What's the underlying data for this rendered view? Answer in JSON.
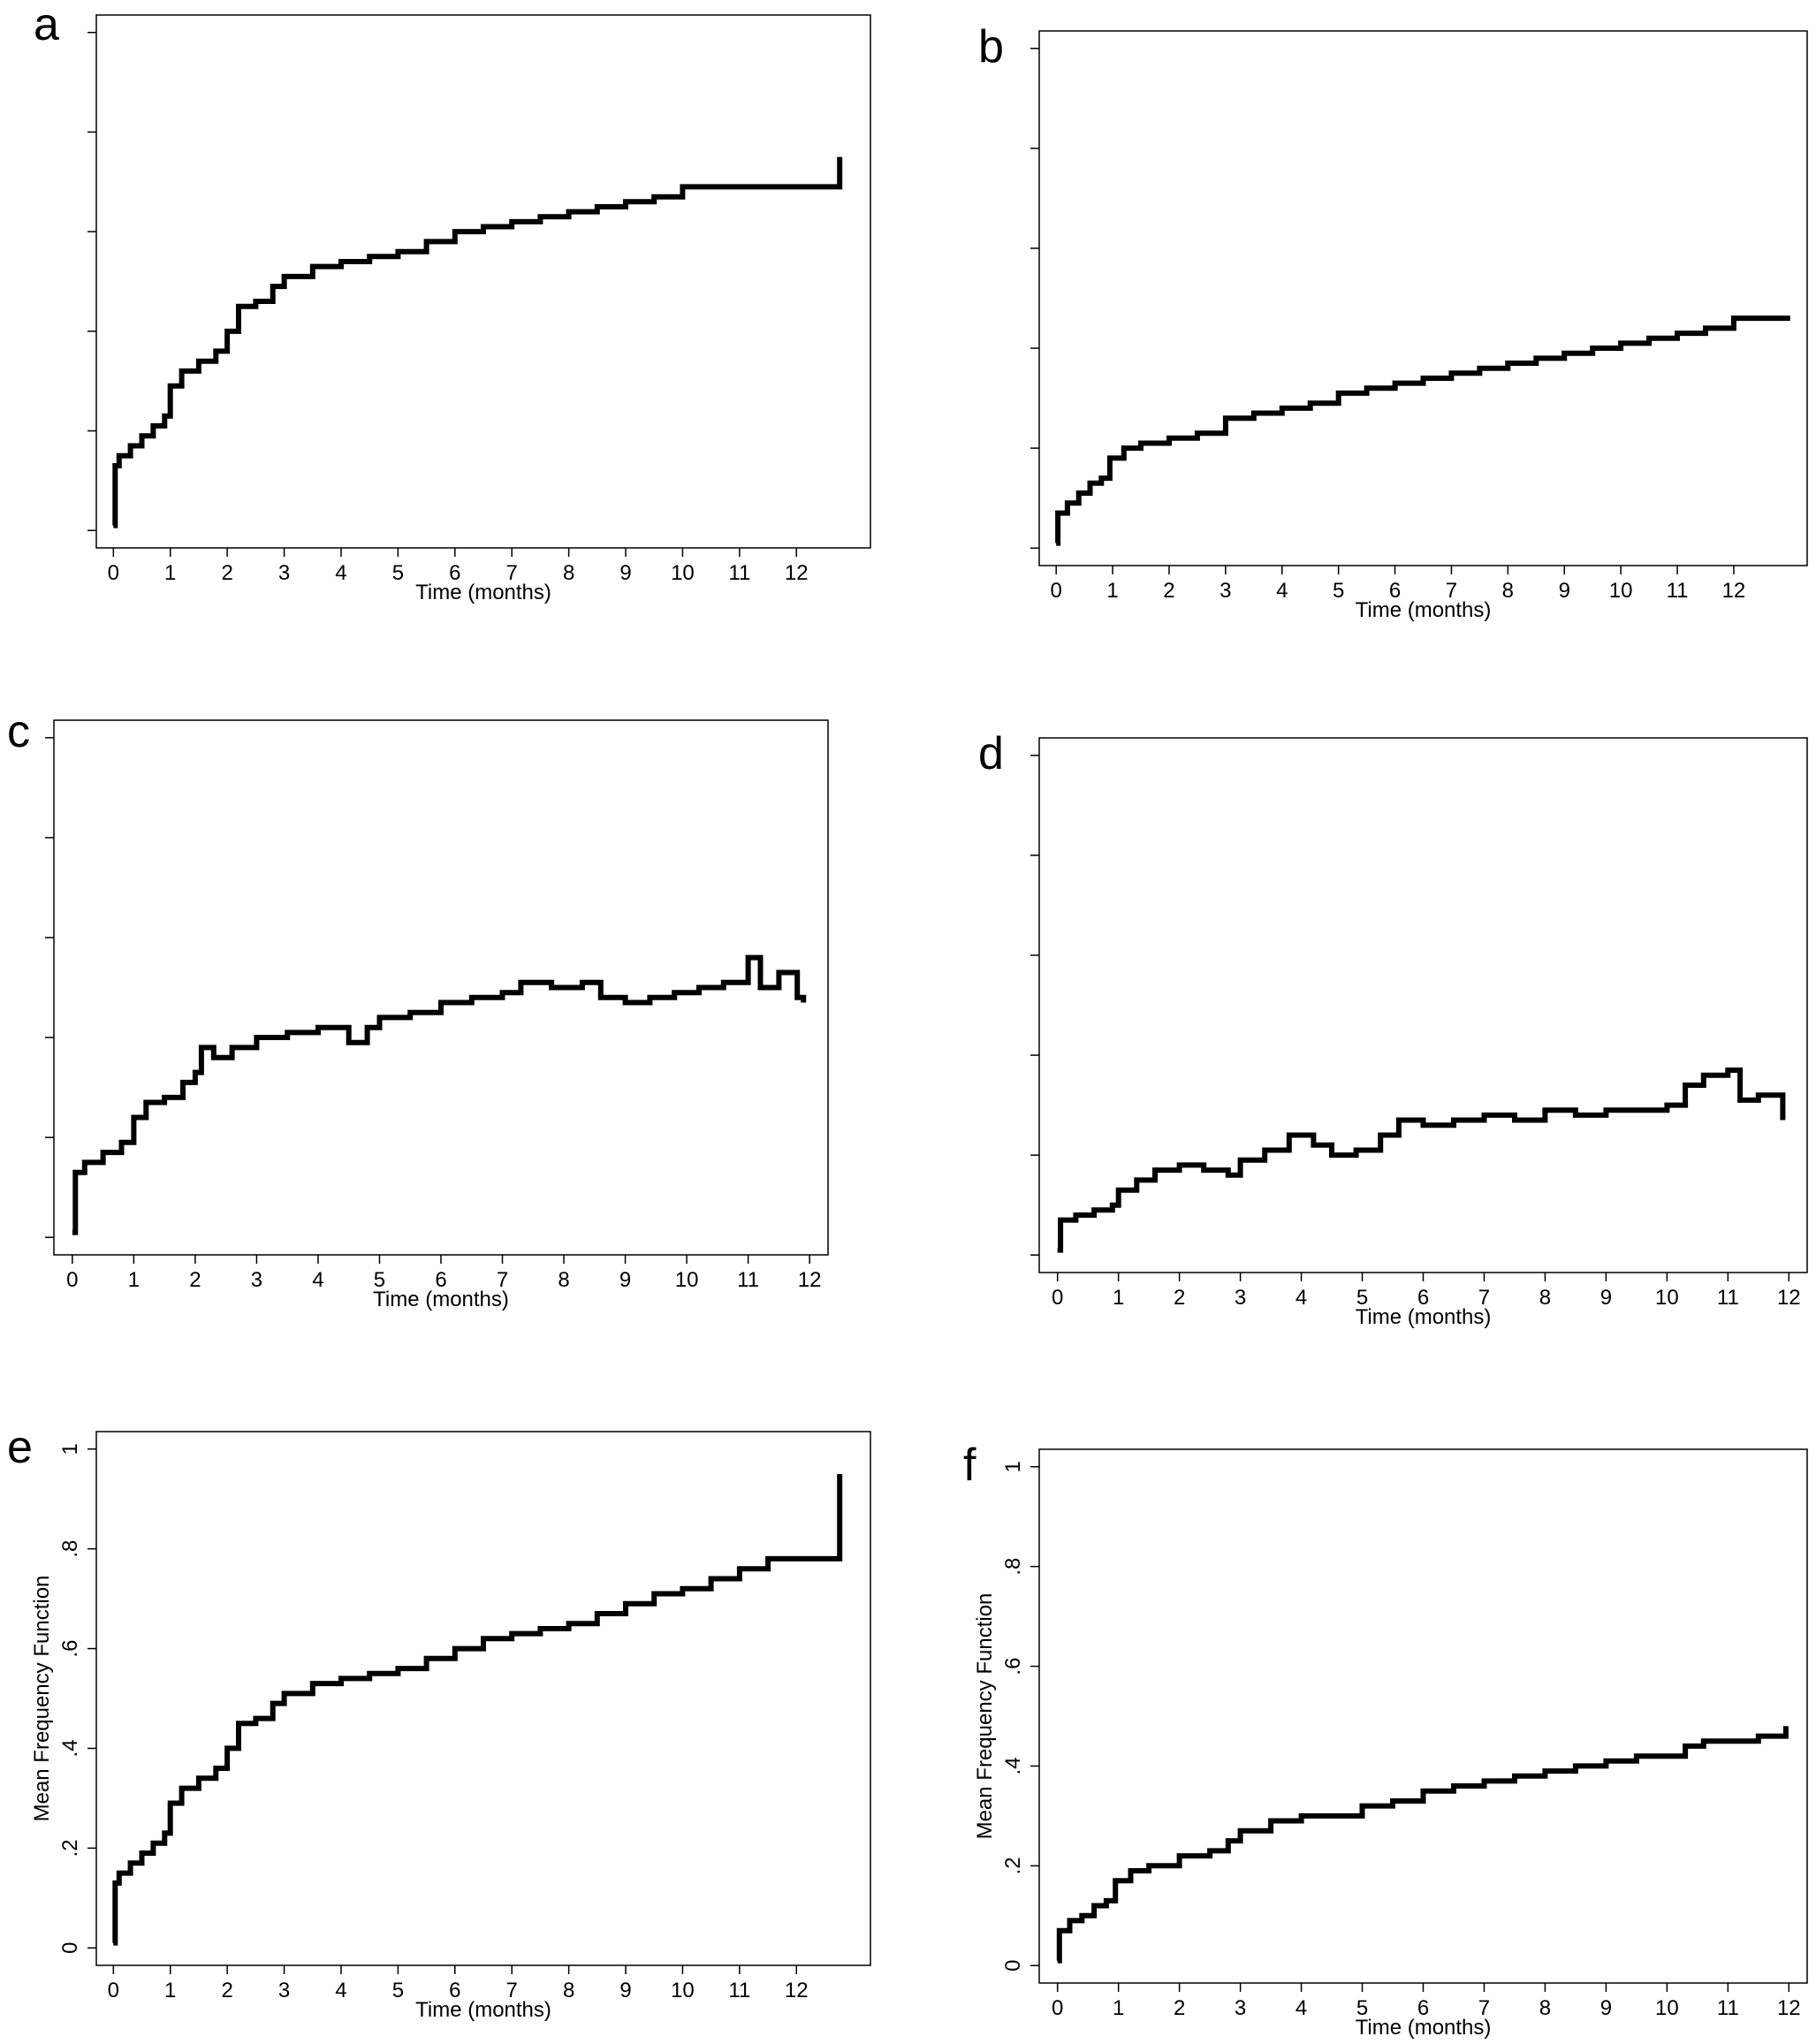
{
  "chart_data": [
    {
      "id": "a",
      "type": "line",
      "panel_label": "a",
      "xlabel": "Time (months)",
      "ylabel": "",
      "xticks": [
        0,
        1,
        2,
        3,
        4,
        5,
        6,
        7,
        8,
        9,
        10,
        11,
        12
      ],
      "yticks": [
        0,
        0.2,
        0.4,
        0.6,
        0.8,
        1
      ],
      "ytick_labels": [
        "",
        "",
        "",
        "",
        "",
        ""
      ],
      "xlim": [
        -0.3,
        13.3
      ],
      "ylim": [
        -0.035,
        1.035
      ],
      "step": true,
      "x": [
        0,
        0.03,
        0.1,
        0.3,
        0.5,
        0.7,
        0.9,
        1.0,
        1.2,
        1.5,
        1.8,
        2.0,
        2.2,
        2.5,
        2.8,
        3.0,
        3.5,
        4.0,
        4.5,
        5.0,
        5.5,
        6.0,
        6.5,
        7.0,
        7.5,
        8.0,
        8.5,
        9.0,
        9.5,
        10.0,
        10.5,
        11.0,
        11.5,
        12.0,
        12.5,
        12.75,
        12.76
      ],
      "y": [
        0.01,
        0.13,
        0.15,
        0.17,
        0.19,
        0.21,
        0.23,
        0.29,
        0.32,
        0.34,
        0.36,
        0.4,
        0.45,
        0.46,
        0.49,
        0.51,
        0.53,
        0.54,
        0.55,
        0.56,
        0.58,
        0.6,
        0.61,
        0.62,
        0.63,
        0.64,
        0.65,
        0.66,
        0.67,
        0.69,
        0.69,
        0.69,
        0.69,
        0.69,
        0.69,
        0.69,
        0.75
      ]
    },
    {
      "id": "b",
      "type": "line",
      "panel_label": "b",
      "xlabel": "Time (months)",
      "ylabel": "",
      "xticks": [
        0,
        1,
        2,
        3,
        4,
        5,
        6,
        7,
        8,
        9,
        10,
        11,
        12
      ],
      "yticks": [
        0,
        0.2,
        0.4,
        0.6,
        0.8,
        1
      ],
      "ytick_labels": [
        "",
        "",
        "",
        "",
        "",
        ""
      ],
      "xlim": [
        -0.3,
        13.3
      ],
      "ylim": [
        -0.035,
        1.035
      ],
      "step": true,
      "x": [
        0,
        0.03,
        0.2,
        0.4,
        0.6,
        0.8,
        0.95,
        1.2,
        1.5,
        2.0,
        2.5,
        3.0,
        3.5,
        4.0,
        4.5,
        5.0,
        5.5,
        6.0,
        6.5,
        7.0,
        7.5,
        8.0,
        8.5,
        9.0,
        9.5,
        10.0,
        10.5,
        11.0,
        11.5,
        12.0,
        12.5,
        13.0
      ],
      "y": [
        0.01,
        0.07,
        0.09,
        0.11,
        0.13,
        0.14,
        0.18,
        0.2,
        0.21,
        0.22,
        0.23,
        0.26,
        0.27,
        0.28,
        0.29,
        0.31,
        0.32,
        0.33,
        0.34,
        0.35,
        0.36,
        0.37,
        0.38,
        0.39,
        0.4,
        0.41,
        0.42,
        0.43,
        0.44,
        0.46,
        0.46,
        0.46
      ]
    },
    {
      "id": "c",
      "type": "line",
      "panel_label": "c",
      "xlabel": "Time (months)",
      "ylabel": "",
      "xticks": [
        0,
        1,
        2,
        3,
        4,
        5,
        6,
        7,
        8,
        9,
        10,
        11,
        12
      ],
      "yticks": [
        0,
        0.2,
        0.4,
        0.6,
        0.8,
        1
      ],
      "ytick_labels": [
        "",
        "",
        "",
        "",
        "",
        ""
      ],
      "xlim": [
        -0.3,
        12.3
      ],
      "ylim": [
        -0.035,
        1.035
      ],
      "step": true,
      "x": [
        0,
        0.05,
        0.2,
        0.5,
        0.8,
        1.0,
        1.2,
        1.5,
        1.8,
        2.0,
        2.1,
        2.3,
        2.6,
        3.0,
        3.5,
        4.0,
        4.5,
        4.8,
        5.0,
        5.5,
        6.0,
        6.5,
        7.0,
        7.3,
        7.8,
        8.3,
        8.6,
        9.0,
        9.4,
        9.8,
        10.2,
        10.6,
        11.0,
        11.2,
        11.5,
        11.8,
        11.9
      ],
      "y": [
        0.01,
        0.13,
        0.15,
        0.17,
        0.19,
        0.24,
        0.27,
        0.28,
        0.31,
        0.33,
        0.38,
        0.36,
        0.38,
        0.4,
        0.41,
        0.42,
        0.39,
        0.42,
        0.44,
        0.45,
        0.47,
        0.48,
        0.49,
        0.51,
        0.5,
        0.51,
        0.48,
        0.47,
        0.48,
        0.49,
        0.5,
        0.51,
        0.56,
        0.5,
        0.53,
        0.48,
        0.47
      ]
    },
    {
      "id": "d",
      "type": "line",
      "panel_label": "d",
      "xlabel": "Time (months)",
      "ylabel": "",
      "xticks": [
        0,
        1,
        2,
        3,
        4,
        5,
        6,
        7,
        8,
        9,
        10,
        11,
        12
      ],
      "yticks": [
        0,
        0.2,
        0.4,
        0.6,
        0.8,
        1
      ],
      "ytick_labels": [
        "",
        "",
        "",
        "",
        "",
        ""
      ],
      "xlim": [
        -0.3,
        12.3
      ],
      "ylim": [
        -0.035,
        1.035
      ],
      "step": true,
      "x": [
        0,
        0.05,
        0.3,
        0.6,
        0.9,
        1.0,
        1.3,
        1.6,
        2.0,
        2.4,
        2.8,
        3.0,
        3.4,
        3.8,
        4.2,
        4.5,
        4.9,
        5.3,
        5.6,
        6.0,
        6.5,
        7.0,
        7.5,
        8.0,
        8.5,
        9.0,
        9.5,
        10.0,
        10.3,
        10.6,
        11.0,
        11.2,
        11.5,
        11.9
      ],
      "y": [
        0.01,
        0.07,
        0.08,
        0.09,
        0.1,
        0.13,
        0.15,
        0.17,
        0.18,
        0.17,
        0.16,
        0.19,
        0.21,
        0.24,
        0.22,
        0.2,
        0.21,
        0.24,
        0.27,
        0.26,
        0.27,
        0.28,
        0.27,
        0.29,
        0.28,
        0.29,
        0.29,
        0.3,
        0.34,
        0.36,
        0.37,
        0.31,
        0.32,
        0.27
      ]
    },
    {
      "id": "e",
      "type": "line",
      "panel_label": "e",
      "xlabel": "Time (months)",
      "ylabel": "Mean Frequency Function",
      "xticks": [
        0,
        1,
        2,
        3,
        4,
        5,
        6,
        7,
        8,
        9,
        10,
        11,
        12
      ],
      "yticks": [
        0,
        0.2,
        0.4,
        0.6,
        0.8,
        1
      ],
      "ytick_labels": [
        "0",
        ".2",
        ".4",
        ".6",
        ".8",
        "1"
      ],
      "xlim": [
        -0.3,
        13.3
      ],
      "ylim": [
        -0.035,
        1.035
      ],
      "step": true,
      "x": [
        0,
        0.03,
        0.1,
        0.3,
        0.5,
        0.7,
        0.9,
        1.0,
        1.2,
        1.5,
        1.8,
        2.0,
        2.2,
        2.5,
        2.8,
        3.0,
        3.5,
        4.0,
        4.5,
        5.0,
        5.5,
        6.0,
        6.5,
        7.0,
        7.5,
        8.0,
        8.5,
        9.0,
        9.5,
        10.0,
        10.5,
        11.0,
        11.5,
        12.0,
        12.5,
        12.75,
        12.76
      ],
      "y": [
        0.01,
        0.13,
        0.15,
        0.17,
        0.19,
        0.21,
        0.23,
        0.29,
        0.32,
        0.34,
        0.36,
        0.4,
        0.45,
        0.46,
        0.49,
        0.51,
        0.53,
        0.54,
        0.55,
        0.56,
        0.58,
        0.6,
        0.62,
        0.63,
        0.64,
        0.65,
        0.67,
        0.69,
        0.71,
        0.72,
        0.74,
        0.76,
        0.78,
        0.78,
        0.78,
        0.78,
        0.95
      ]
    },
    {
      "id": "f",
      "type": "line",
      "panel_label": "f",
      "xlabel": "Time (months)",
      "ylabel": "Mean Frequency Function",
      "xticks": [
        0,
        1,
        2,
        3,
        4,
        5,
        6,
        7,
        8,
        9,
        10,
        11,
        12
      ],
      "yticks": [
        0,
        0.2,
        0.4,
        0.6,
        0.8,
        1
      ],
      "ytick_labels": [
        "0",
        ".2",
        ".4",
        ".6",
        ".8",
        "1"
      ],
      "xlim": [
        -0.3,
        12.3
      ],
      "ylim": [
        -0.035,
        1.035
      ],
      "step": true,
      "x": [
        0,
        0.03,
        0.2,
        0.4,
        0.6,
        0.8,
        0.95,
        1.2,
        1.5,
        2.0,
        2.5,
        2.8,
        3.0,
        3.5,
        4.0,
        4.5,
        5.0,
        5.5,
        6.0,
        6.5,
        7.0,
        7.5,
        8.0,
        8.5,
        9.0,
        9.5,
        10.0,
        10.3,
        10.6,
        11.0,
        11.5,
        11.95
      ],
      "y": [
        0.01,
        0.07,
        0.09,
        0.1,
        0.12,
        0.13,
        0.17,
        0.19,
        0.2,
        0.22,
        0.23,
        0.25,
        0.27,
        0.29,
        0.3,
        0.3,
        0.32,
        0.33,
        0.35,
        0.36,
        0.37,
        0.38,
        0.39,
        0.4,
        0.41,
        0.42,
        0.42,
        0.44,
        0.45,
        0.45,
        0.46,
        0.48
      ]
    }
  ]
}
